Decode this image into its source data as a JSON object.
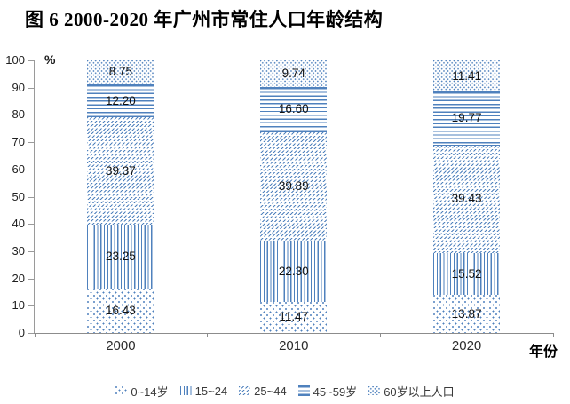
{
  "chart_data": {
    "type": "bar",
    "variant": "stacked-percent",
    "title": "图 6 2000-2020 年广州市常住人口年龄结构",
    "ylabel": "%",
    "xlabel": "年份",
    "ylim": [
      0,
      100
    ],
    "yticks": [
      0,
      10,
      20,
      30,
      40,
      50,
      60,
      70,
      80,
      90,
      100
    ],
    "grid": false,
    "legend_position": "bottom",
    "accent_color": "#4f81bd",
    "categories": [
      "2000",
      "2010",
      "2020"
    ],
    "series": [
      {
        "name": "0~14岁",
        "pattern": "dots-sparse",
        "values": [
          16.43,
          11.47,
          13.87
        ]
      },
      {
        "name": "15~24",
        "pattern": "vlines",
        "values": [
          23.25,
          22.3,
          15.52
        ]
      },
      {
        "name": "25~44",
        "pattern": "diag",
        "values": [
          39.37,
          39.89,
          39.43
        ]
      },
      {
        "name": "45~59岁",
        "pattern": "hlines",
        "values": [
          12.2,
          16.6,
          19.77
        ]
      },
      {
        "name": "60岁以上人口",
        "pattern": "dots-dense",
        "values": [
          8.75,
          9.74,
          11.41
        ]
      }
    ]
  }
}
